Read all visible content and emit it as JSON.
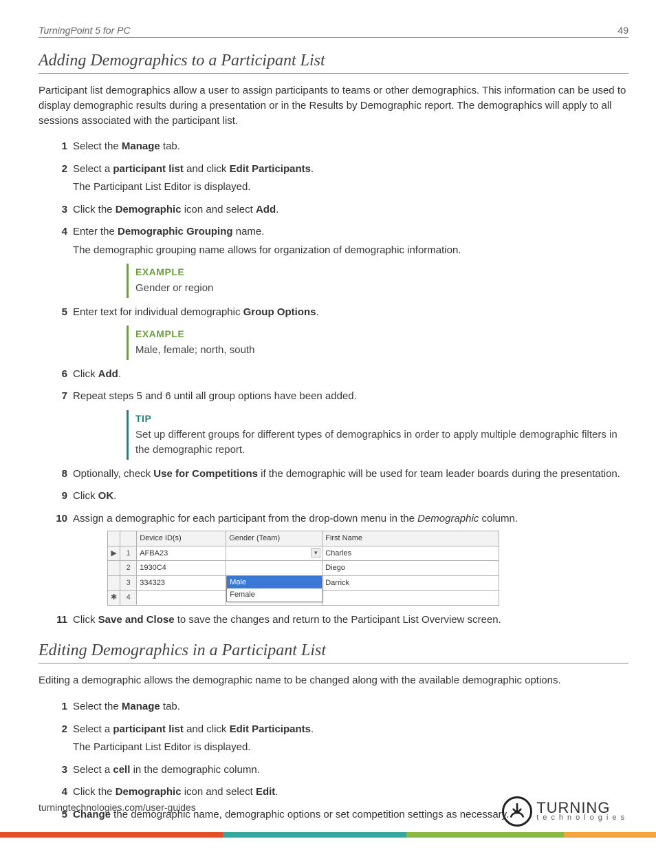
{
  "header": {
    "title": "TurningPoint 5 for PC",
    "pagenum": "49"
  },
  "section1": {
    "title": "Adding Demographics to a Participant List",
    "intro": "Participant list demographics allow a user to assign participants to teams or other demographics. This information can be used to display demographic results during a presentation or in the Results by Demographic report. The demographics will apply to all sessions associated with the participant list.",
    "steps": [
      {
        "n": "1",
        "pre": "Select the ",
        "bold": "Manage",
        "post": " tab."
      },
      {
        "n": "2",
        "pre": "Select a ",
        "bold": "participant list",
        "mid": " and click ",
        "bold2": "Edit Participants",
        "post": ".",
        "sub": "The Participant List Editor is displayed."
      },
      {
        "n": "3",
        "pre": "Click the ",
        "bold": "Demographic",
        "mid": " icon and select ",
        "bold2": "Add",
        "post": "."
      },
      {
        "n": "4",
        "pre": "Enter the ",
        "bold": "Demographic Grouping",
        "post": " name.",
        "sub": "The demographic grouping name allows for organization of demographic information."
      },
      {
        "n": "5",
        "pre": "Enter text for individual demographic ",
        "bold": "Group Options",
        "post": "."
      },
      {
        "n": "6",
        "pre": "Click ",
        "bold": "Add",
        "post": "."
      },
      {
        "n": "7",
        "text": "Repeat steps 5 and 6 until all group options have been added."
      },
      {
        "n": "8",
        "pre": "Optionally, check ",
        "bold": "Use for Competitions",
        "post": " if the demographic will be used for team leader boards during the presentation."
      },
      {
        "n": "9",
        "pre": "Click ",
        "bold": "OK",
        "post": "."
      },
      {
        "n": "10",
        "pre": "Assign a demographic for each participant from the drop-down menu in the ",
        "ital": "Demographic",
        "post": " column."
      },
      {
        "n": "11",
        "pre": "Click ",
        "bold": "Save and Close",
        "post": " to save the changes and return to the Participant List Overview screen."
      }
    ],
    "example1": {
      "label": "EXAMPLE",
      "body": "Gender or region"
    },
    "example2": {
      "label": "EXAMPLE",
      "body": "Male, female; north, south"
    },
    "tip": {
      "label": "TIP",
      "body": "Set up different groups for different types of demographics in order to apply multiple demographic filters in the demographic report."
    }
  },
  "demo_table": {
    "columns": [
      "Device ID(s)",
      "Gender (Team)",
      "First Name"
    ],
    "col_widths": [
      "130px",
      "140px",
      "auto"
    ],
    "rows": [
      {
        "marker": "▶",
        "n": "1",
        "device": "AFBA23",
        "gender": "",
        "gender_dropdown": true,
        "first": "Charles"
      },
      {
        "marker": "",
        "n": "2",
        "device": "1930C4",
        "gender": "",
        "first": "Diego",
        "menu_open": true
      },
      {
        "marker": "",
        "n": "3",
        "device": "334323",
        "gender": "Female",
        "first": "Darrick"
      },
      {
        "marker": "✱",
        "n": "4",
        "device": "",
        "gender": "",
        "gender_dropdown": true,
        "first": ""
      }
    ],
    "menu": {
      "options": [
        "Male",
        "Female"
      ],
      "selected": "Male"
    }
  },
  "section2": {
    "title": "Editing Demographics in a Participant List",
    "intro": "Editing a demographic allows the demographic name to be changed along with the available demographic options.",
    "steps": [
      {
        "n": "1",
        "pre": "Select the ",
        "bold": "Manage",
        "post": " tab."
      },
      {
        "n": "2",
        "pre": "Select a ",
        "bold": "participant list",
        "mid": " and click ",
        "bold2": "Edit Participants",
        "post": ".",
        "sub": "The Participant List Editor is displayed."
      },
      {
        "n": "3",
        "pre": "Select a ",
        "bold": "cell",
        "post": " in the demographic column."
      },
      {
        "n": "4",
        "pre": "Click the ",
        "bold": "Demographic",
        "mid": " icon and select ",
        "bold2": "Edit",
        "post": "."
      },
      {
        "n": "5",
        "boldpre": "Change",
        "post": " the demographic name, demographic options or set competition settings as necessary."
      }
    ]
  },
  "footer": {
    "url": "turningtechnologies.com/user-guides",
    "logo_big": "TURNING",
    "logo_small": "technologies"
  },
  "bottom_bar_colors": [
    "#e84b2e",
    "#3aa6a0",
    "#89b84a",
    "#f0a63a"
  ],
  "bottom_bar_widths": [
    "34%",
    "28%",
    "24%",
    "14%"
  ],
  "colors": {
    "example_accent": "#6b9e3f",
    "tip_accent": "#2a7a7a"
  }
}
